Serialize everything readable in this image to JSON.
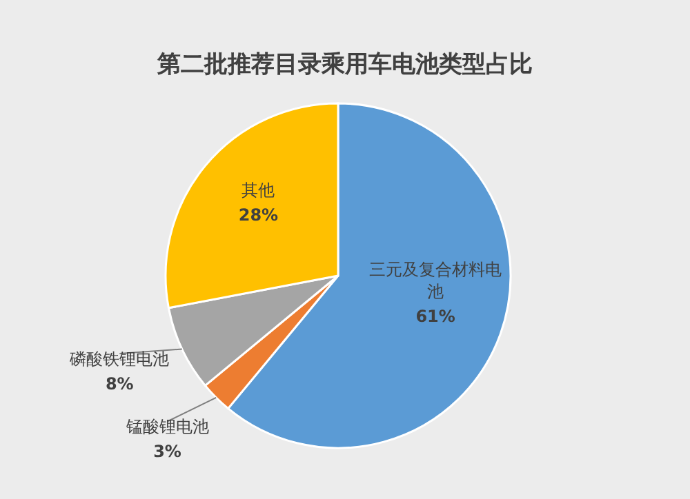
{
  "chart_data": {
    "type": "pie",
    "title": "第二批推荐目录乘用车电池类型占比",
    "categories": [
      "三元及复合材料电池",
      "锰酸锂电池",
      "磷酸铁锂电池",
      "其他"
    ],
    "values": [
      61,
      3,
      8,
      28
    ],
    "colors": [
      "#5b9bd5",
      "#ed7d31",
      "#a5a5a5",
      "#ffc000"
    ],
    "value_labels": [
      "61%",
      "3%",
      "8%",
      "28%"
    ]
  }
}
